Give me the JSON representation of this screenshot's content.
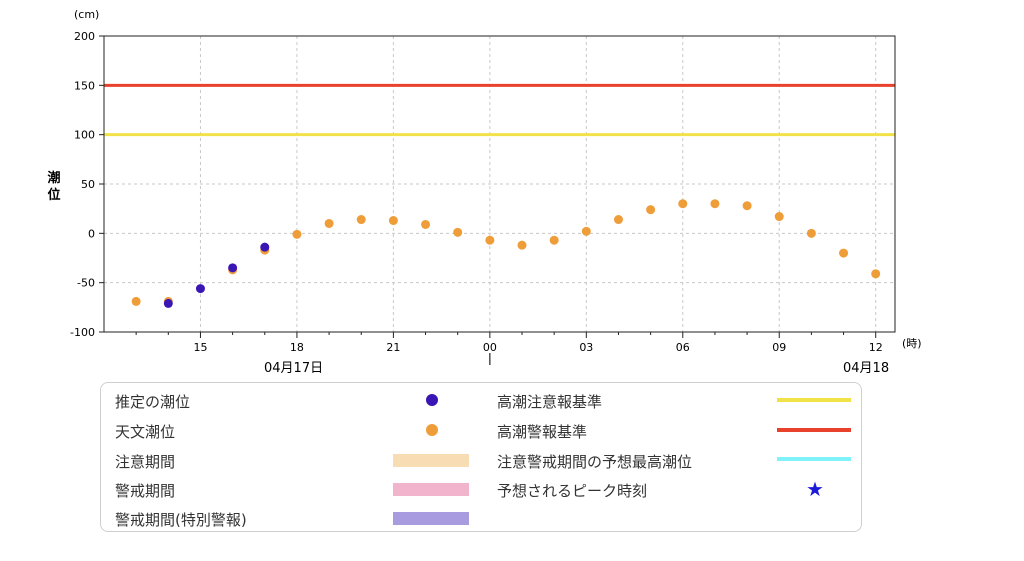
{
  "chart_data": {
    "type": "scatter",
    "y_unit": "(cm)",
    "x_unit": "(時)",
    "ylabel": "潮位",
    "ylim": [
      -100,
      200
    ],
    "y_ticks": [
      "200",
      "150",
      "100",
      "50",
      "0",
      "-50",
      "-100"
    ],
    "x_tick_labels": [
      "15",
      "18",
      "21",
      "00",
      "03",
      "06",
      "09",
      "12"
    ],
    "date_labels": [
      "04月17日",
      "04月18"
    ],
    "x_range_hours": [
      12,
      36.6
    ],
    "reference_lines": [
      {
        "name": "高潮警報基準",
        "value": 150,
        "color": "#e8412c"
      },
      {
        "name": "高潮注意報基準",
        "value": 100,
        "color": "#f2e24a"
      }
    ],
    "series": [
      {
        "name": "推定の潮位",
        "color": "#3a17b5",
        "x": [
          14,
          15,
          16,
          17
        ],
        "y": [
          -71,
          -56,
          -35,
          -14
        ]
      },
      {
        "name": "天文潮位",
        "color": "#ef9d39",
        "x": [
          13,
          14,
          16,
          17,
          18,
          19,
          20,
          21,
          22,
          23,
          24,
          25,
          26,
          27,
          28,
          29,
          30,
          31,
          32,
          33,
          34,
          35,
          36
        ],
        "y": [
          -69,
          -69,
          -37,
          -17,
          -1,
          10,
          14,
          13,
          9,
          1,
          -7,
          -12,
          -7,
          2,
          14,
          24,
          30,
          30,
          28,
          17,
          0,
          -20,
          -41
        ]
      }
    ]
  },
  "legend": {
    "items": [
      {
        "label": "推定の潮位",
        "kind": "dot",
        "color": "#3a17b5"
      },
      {
        "label": "天文潮位",
        "kind": "dot",
        "color": "#ef9d39"
      },
      {
        "label": "注意期間",
        "kind": "band",
        "color": "#f8dcb4"
      },
      {
        "label": "警戒期間",
        "kind": "band",
        "color": "#f2b3cc"
      },
      {
        "label": "警戒期間(特別警報)",
        "kind": "band",
        "color": "#a99be0"
      },
      {
        "label": "高潮注意報基準",
        "kind": "line",
        "color": "#f2e24a"
      },
      {
        "label": "高潮警報基準",
        "kind": "line",
        "color": "#e8412c"
      },
      {
        "label": "注意警戒期間の予想最高潮位",
        "kind": "line",
        "color": "#7ff2fa"
      },
      {
        "label": "予想されるピーク時刻",
        "kind": "star",
        "color": "#1a1ad8",
        "glyph": "★"
      }
    ]
  }
}
